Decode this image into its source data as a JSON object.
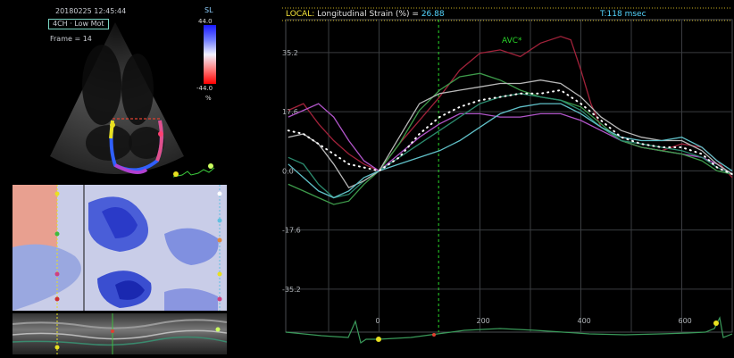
{
  "echo": {
    "date_time": "20180225 12:45:44",
    "mode": "4CH · Low Mot",
    "frame": "Frame = 14",
    "scale_label": "SL",
    "scale_max": "44.0",
    "scale_min": "-44.0",
    "scale_unit": "%"
  },
  "strain": {
    "header_local": "LOCAL:",
    "header_title": "Longitudinal Strain (%) =",
    "header_value": "26.88",
    "header_time": "T:118 msec",
    "avc_label": "AVC*",
    "y_ticks": [
      "35.2",
      "17.6",
      "0.0",
      "-17.6",
      "-35.2"
    ],
    "x_ticks": [
      "0",
      "200",
      "400",
      "600"
    ]
  },
  "colors": {
    "grid": "#3a3d40",
    "header_yellow": "#f2e23a",
    "header_cyan": "#54d6ff",
    "avc_green": "#29d629"
  },
  "chart_data": {
    "type": "line",
    "xlim": [
      -185,
      700
    ],
    "ylim": [
      -48,
      45
    ],
    "x_ticks": [
      0,
      200,
      400,
      600
    ],
    "y_ticks": [
      35.2,
      17.6,
      0,
      -17.6,
      -35.2
    ],
    "avc_x": 118,
    "series": [
      {
        "color": "#a1223a",
        "values": [
          [
            -180,
            18
          ],
          [
            -150,
            20
          ],
          [
            -120,
            14
          ],
          [
            -90,
            9
          ],
          [
            -60,
            5
          ],
          [
            -30,
            2
          ],
          [
            0,
            0
          ],
          [
            40,
            8
          ],
          [
            80,
            15
          ],
          [
            120,
            22
          ],
          [
            160,
            30
          ],
          [
            200,
            35
          ],
          [
            240,
            36
          ],
          [
            280,
            34
          ],
          [
            320,
            38
          ],
          [
            360,
            40
          ],
          [
            380,
            39
          ],
          [
            400,
            30
          ],
          [
            420,
            20
          ],
          [
            440,
            13
          ],
          [
            480,
            9
          ],
          [
            520,
            7
          ],
          [
            560,
            6
          ],
          [
            600,
            8
          ],
          [
            640,
            7
          ],
          [
            670,
            3
          ],
          [
            700,
            -2
          ]
        ]
      },
      {
        "color": "#b055c8",
        "values": [
          [
            -180,
            16
          ],
          [
            -150,
            18
          ],
          [
            -120,
            20
          ],
          [
            -90,
            16
          ],
          [
            -60,
            9
          ],
          [
            -30,
            3
          ],
          [
            0,
            0
          ],
          [
            40,
            5
          ],
          [
            80,
            10
          ],
          [
            120,
            14
          ],
          [
            160,
            17
          ],
          [
            200,
            17
          ],
          [
            240,
            16
          ],
          [
            280,
            16
          ],
          [
            320,
            17
          ],
          [
            360,
            17
          ],
          [
            400,
            15
          ],
          [
            440,
            12
          ],
          [
            480,
            9
          ],
          [
            520,
            7
          ],
          [
            560,
            6
          ],
          [
            600,
            5
          ],
          [
            640,
            4
          ],
          [
            670,
            2
          ],
          [
            700,
            -1
          ]
        ]
      },
      {
        "color": "#3d9a4a",
        "values": [
          [
            -180,
            -4
          ],
          [
            -150,
            -6
          ],
          [
            -120,
            -8
          ],
          [
            -90,
            -10
          ],
          [
            -60,
            -9
          ],
          [
            -30,
            -4
          ],
          [
            0,
            0
          ],
          [
            40,
            8
          ],
          [
            80,
            18
          ],
          [
            120,
            24
          ],
          [
            160,
            28
          ],
          [
            200,
            29
          ],
          [
            240,
            27
          ],
          [
            280,
            24
          ],
          [
            320,
            22
          ],
          [
            360,
            21
          ],
          [
            400,
            19
          ],
          [
            440,
            14
          ],
          [
            480,
            9
          ],
          [
            520,
            7
          ],
          [
            560,
            6
          ],
          [
            600,
            5
          ],
          [
            640,
            3
          ],
          [
            670,
            0
          ],
          [
            700,
            -1
          ]
        ]
      },
      {
        "color": "#2b8a6e",
        "values": [
          [
            -180,
            4
          ],
          [
            -150,
            2
          ],
          [
            -120,
            -4
          ],
          [
            -90,
            -8
          ],
          [
            -60,
            -7
          ],
          [
            -30,
            -3
          ],
          [
            0,
            0
          ],
          [
            40,
            4
          ],
          [
            80,
            8
          ],
          [
            120,
            12
          ],
          [
            160,
            16
          ],
          [
            200,
            20
          ],
          [
            240,
            22
          ],
          [
            280,
            23
          ],
          [
            320,
            22
          ],
          [
            360,
            21
          ],
          [
            400,
            18
          ],
          [
            440,
            13
          ],
          [
            480,
            9
          ],
          [
            520,
            8
          ],
          [
            560,
            7
          ],
          [
            600,
            6
          ],
          [
            640,
            4
          ],
          [
            670,
            1
          ],
          [
            700,
            -1
          ]
        ]
      },
      {
        "color": "#b8b8b8",
        "values": [
          [
            -180,
            10
          ],
          [
            -150,
            11
          ],
          [
            -120,
            8
          ],
          [
            -90,
            2
          ],
          [
            -60,
            -5
          ],
          [
            -30,
            -3
          ],
          [
            0,
            0
          ],
          [
            40,
            10
          ],
          [
            80,
            20
          ],
          [
            120,
            23
          ],
          [
            160,
            24
          ],
          [
            200,
            25
          ],
          [
            240,
            26
          ],
          [
            280,
            26
          ],
          [
            320,
            27
          ],
          [
            360,
            26
          ],
          [
            400,
            22
          ],
          [
            440,
            16
          ],
          [
            480,
            12
          ],
          [
            520,
            10
          ],
          [
            560,
            9
          ],
          [
            600,
            9
          ],
          [
            640,
            6
          ],
          [
            670,
            2
          ],
          [
            700,
            -1
          ]
        ]
      },
      {
        "color": "#60c0c8",
        "values": [
          [
            -180,
            2
          ],
          [
            -150,
            -2
          ],
          [
            -120,
            -6
          ],
          [
            -90,
            -8
          ],
          [
            -60,
            -6
          ],
          [
            -30,
            -2
          ],
          [
            0,
            0
          ],
          [
            40,
            2
          ],
          [
            80,
            4
          ],
          [
            120,
            6
          ],
          [
            160,
            9
          ],
          [
            200,
            13
          ],
          [
            240,
            17
          ],
          [
            280,
            19
          ],
          [
            320,
            20
          ],
          [
            360,
            20
          ],
          [
            400,
            17
          ],
          [
            440,
            13
          ],
          [
            480,
            10
          ],
          [
            520,
            9
          ],
          [
            560,
            9
          ],
          [
            600,
            10
          ],
          [
            640,
            7
          ],
          [
            670,
            3
          ],
          [
            700,
            0
          ]
        ]
      },
      {
        "color": "#ffffff",
        "dashed": true,
        "values": [
          [
            -180,
            12
          ],
          [
            -150,
            11
          ],
          [
            -120,
            8
          ],
          [
            -90,
            5
          ],
          [
            -60,
            2
          ],
          [
            -30,
            1
          ],
          [
            0,
            0
          ],
          [
            40,
            4
          ],
          [
            80,
            11
          ],
          [
            120,
            16
          ],
          [
            160,
            19
          ],
          [
            200,
            21
          ],
          [
            240,
            22
          ],
          [
            280,
            23
          ],
          [
            320,
            23
          ],
          [
            360,
            24
          ],
          [
            400,
            20
          ],
          [
            440,
            15
          ],
          [
            480,
            10
          ],
          [
            520,
            8
          ],
          [
            560,
            7
          ],
          [
            600,
            7
          ],
          [
            640,
            5
          ],
          [
            670,
            1
          ],
          [
            700,
            -1
          ]
        ]
      }
    ]
  }
}
